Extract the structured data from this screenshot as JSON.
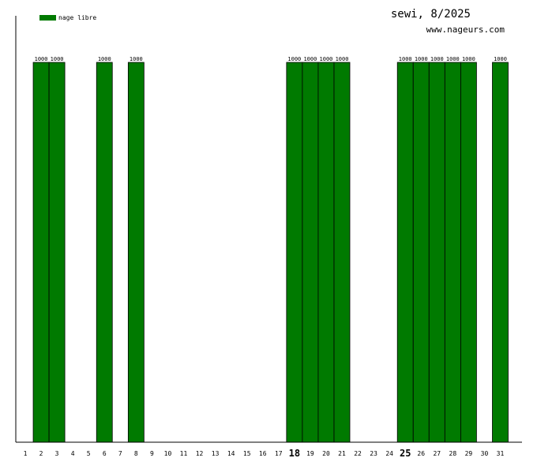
{
  "chart_data": {
    "type": "bar",
    "title": "sewi, 8/2025",
    "subtitle": "www.nageurs.com",
    "legend": {
      "label": "nage libre",
      "color": "#007a00",
      "position": "top-left"
    },
    "categories": [
      "1",
      "2",
      "3",
      "4",
      "5",
      "6",
      "7",
      "8",
      "9",
      "10",
      "11",
      "12",
      "13",
      "14",
      "15",
      "16",
      "17",
      "18",
      "19",
      "20",
      "21",
      "22",
      "23",
      "24",
      "25",
      "26",
      "27",
      "28",
      "29",
      "30",
      "31"
    ],
    "highlighted_categories": [
      "18",
      "25"
    ],
    "series": [
      {
        "name": "nage libre",
        "color": "#007a00",
        "values": [
          0,
          1000,
          1000,
          0,
          0,
          1000,
          0,
          1000,
          0,
          0,
          0,
          0,
          0,
          0,
          0,
          0,
          0,
          1000,
          1000,
          1000,
          1000,
          0,
          0,
          0,
          1000,
          1000,
          1000,
          1000,
          1000,
          0,
          1000
        ]
      }
    ],
    "data_labels": [
      "",
      "1000",
      "1000",
      "",
      "",
      "1000",
      "",
      "1000",
      "",
      "",
      "",
      "",
      "",
      "",
      "",
      "",
      "",
      "1000",
      "1000",
      "1000",
      "1000",
      "",
      "",
      "",
      "1000",
      "1000",
      "1000",
      "1000",
      "1000",
      "",
      "1000"
    ],
    "ylim": [
      0,
      1000
    ],
    "grid": false
  }
}
